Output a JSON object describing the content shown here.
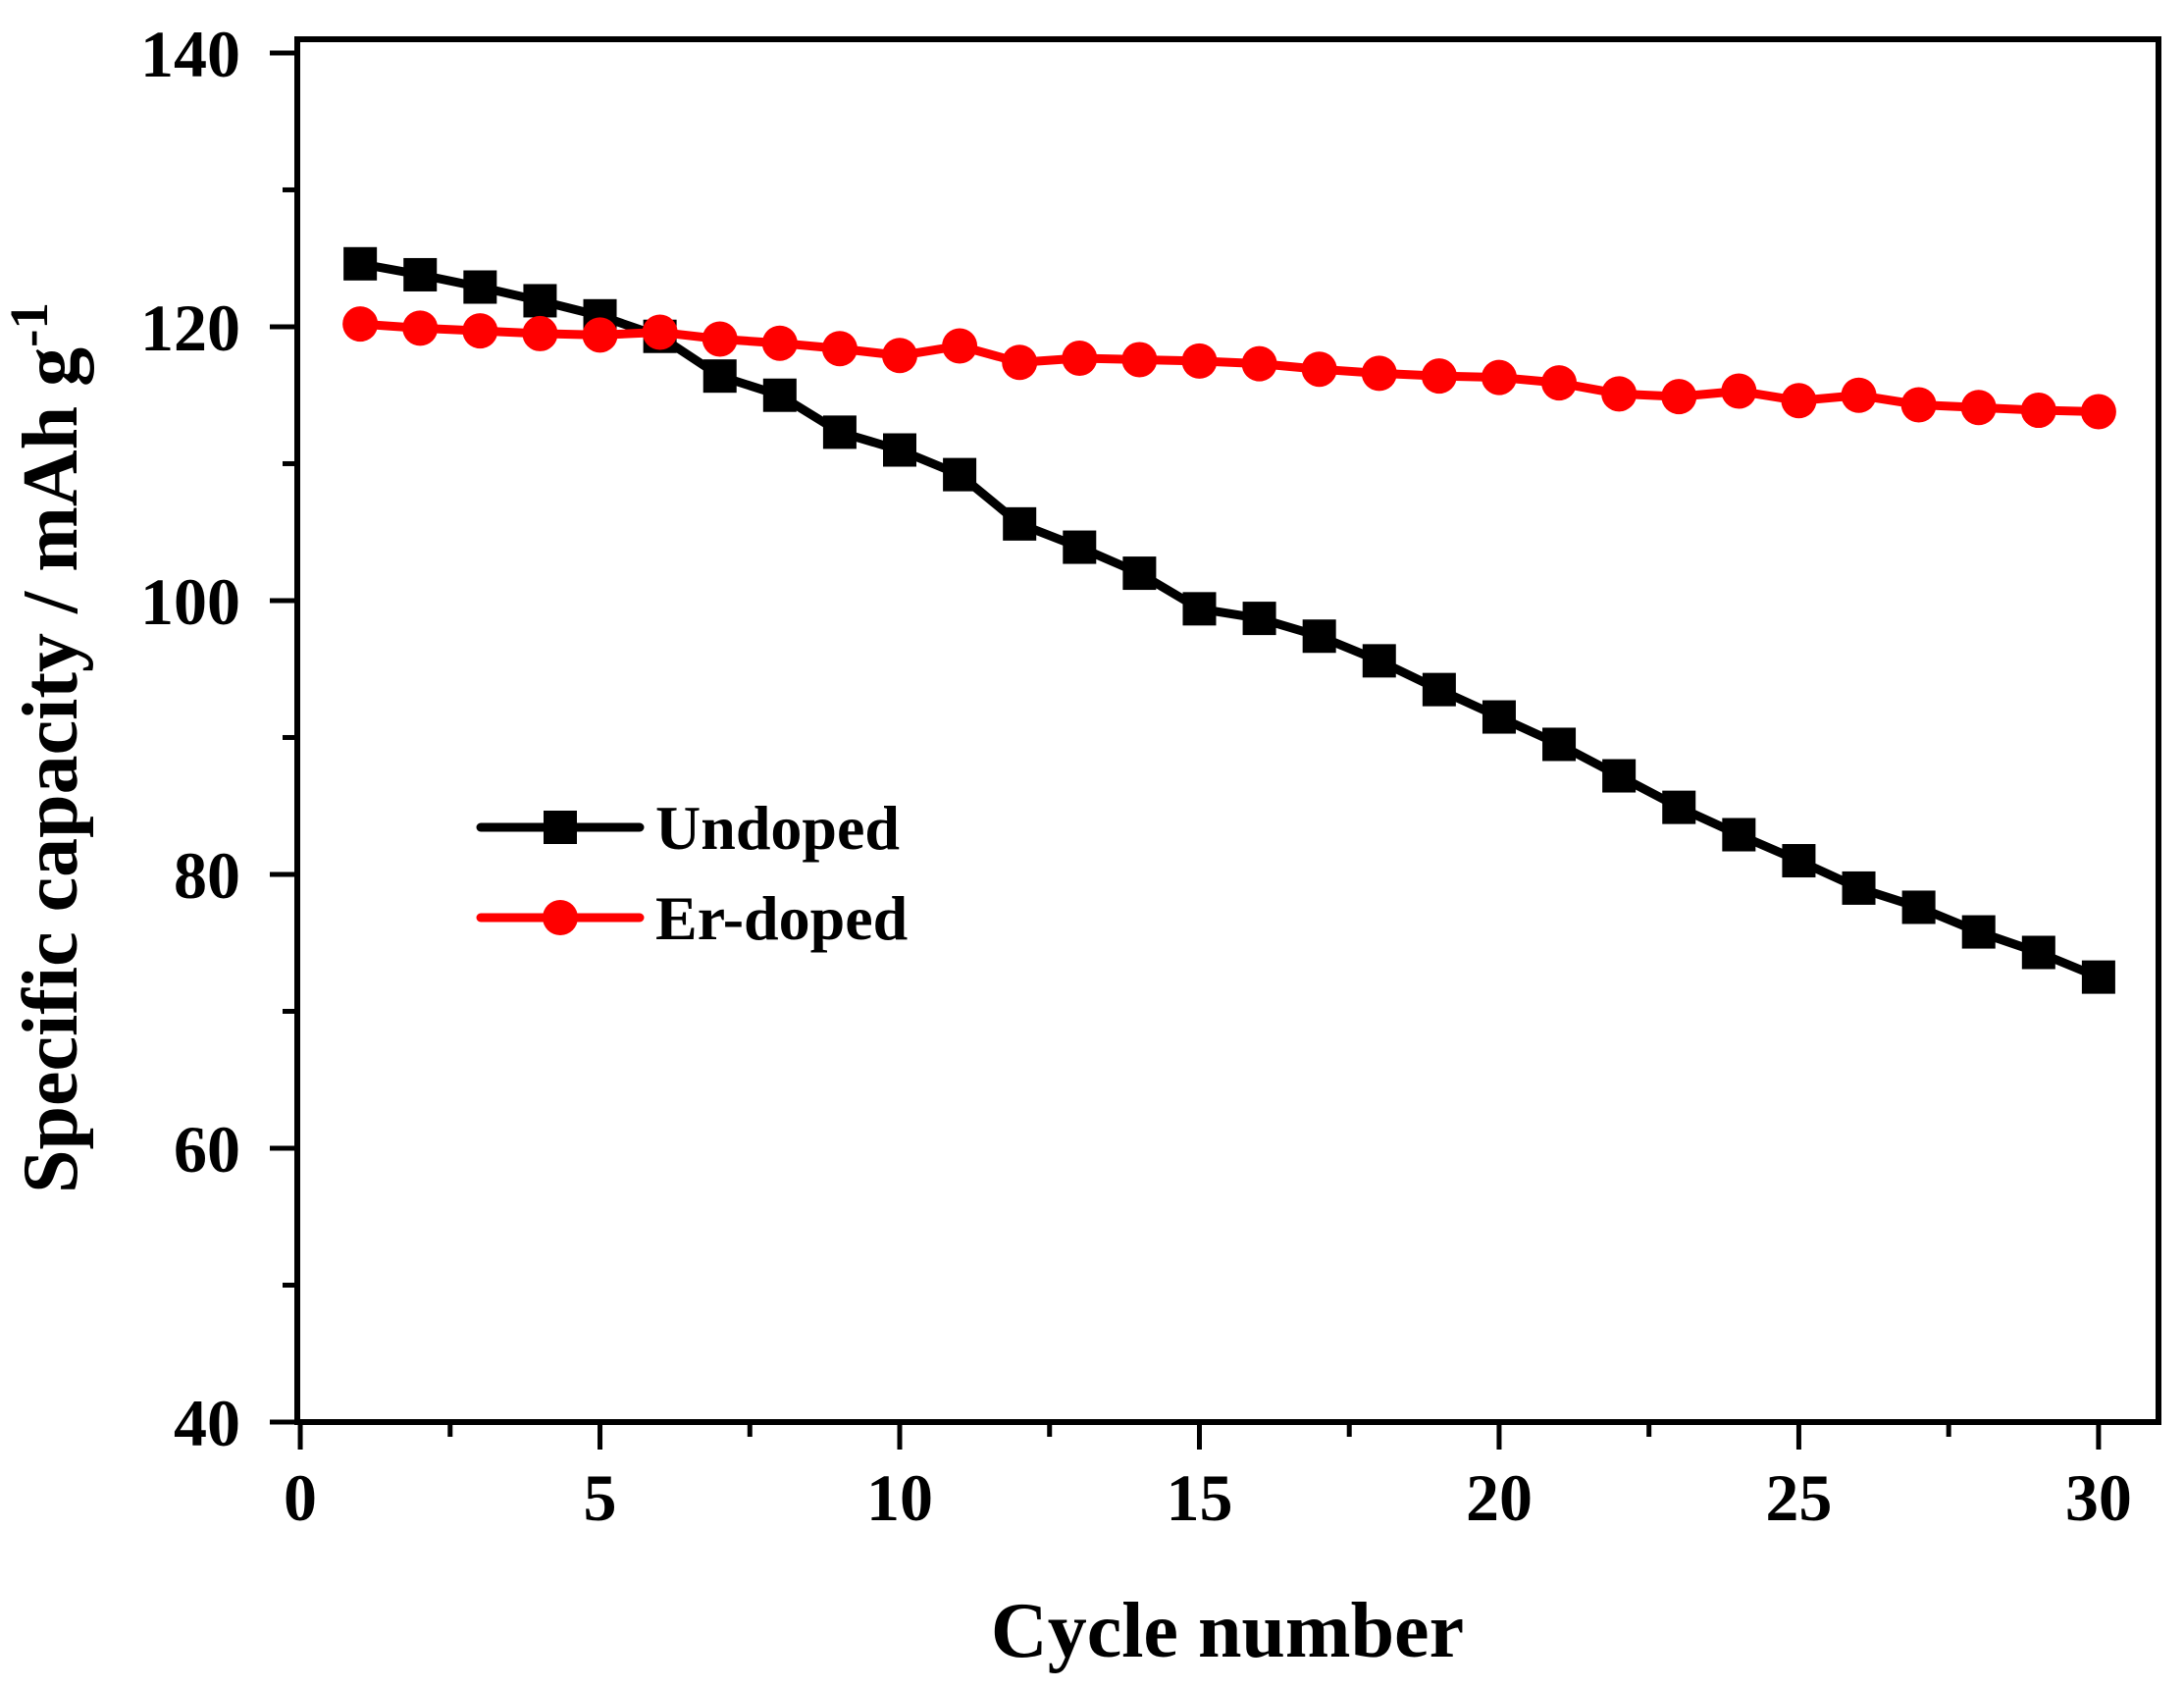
{
  "figure": {
    "background": "#ffffff",
    "axis_color": "#000000"
  },
  "chart_data": {
    "type": "line",
    "title": "",
    "xlabel": "Cycle number",
    "ylabel": "Specific capacity / mAh g",
    "ylabel_superscript": "-1",
    "xlim": [
      -0.05,
      31
    ],
    "ylim": [
      40,
      141
    ],
    "x_major_ticks": [
      0,
      5,
      10,
      15,
      20,
      25,
      30
    ],
    "x_minor_ticks": [
      2.5,
      7.5,
      12.5,
      17.5,
      22.5,
      27.5
    ],
    "y_major_ticks": [
      40,
      60,
      80,
      100,
      120,
      140
    ],
    "y_minor_ticks": [
      50,
      70,
      90,
      110,
      130
    ],
    "grid": false,
    "legend_position": "inside-left-middle",
    "x": [
      1,
      2,
      3,
      4,
      5,
      6,
      7,
      8,
      9,
      10,
      11,
      12,
      13,
      14,
      15,
      16,
      17,
      18,
      19,
      20,
      21,
      22,
      23,
      24,
      25,
      26,
      27,
      28,
      29,
      30
    ],
    "series": [
      {
        "name": "Undoped",
        "color": "#000000",
        "marker": "square",
        "values": [
          124.6,
          123.8,
          122.9,
          121.9,
          120.8,
          119.3,
          116.4,
          115.0,
          112.3,
          111.0,
          109.2,
          105.6,
          103.9,
          102.0,
          99.4,
          98.7,
          97.4,
          95.6,
          93.5,
          91.5,
          89.5,
          87.2,
          84.9,
          82.9,
          81.0,
          79.0,
          77.6,
          75.8,
          74.3,
          72.5
        ]
      },
      {
        "name": "Er-doped",
        "color": "#ff0000",
        "marker": "circle",
        "values": [
          120.2,
          119.9,
          119.7,
          119.5,
          119.4,
          119.6,
          119.1,
          118.8,
          118.4,
          117.9,
          118.6,
          117.4,
          117.7,
          117.6,
          117.5,
          117.3,
          116.9,
          116.6,
          116.4,
          116.3,
          115.9,
          115.1,
          114.9,
          115.3,
          114.6,
          115.0,
          114.3,
          114.1,
          113.9,
          113.8
        ]
      }
    ]
  }
}
